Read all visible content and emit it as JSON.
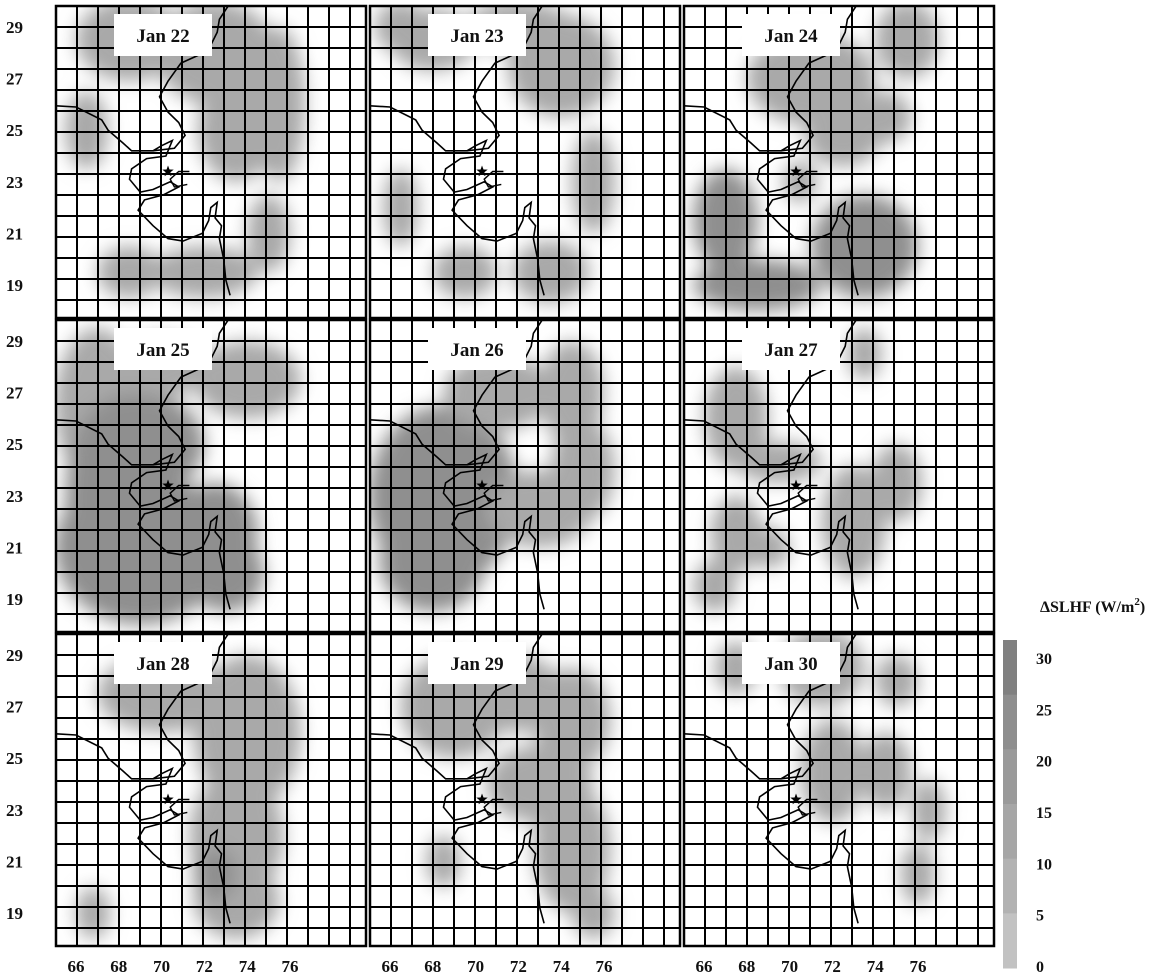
{
  "figure": {
    "panels": [
      {
        "date": "Jan 22"
      },
      {
        "date": "Jan 23"
      },
      {
        "date": "Jan 24"
      },
      {
        "date": "Jan 25"
      },
      {
        "date": "Jan 26"
      },
      {
        "date": "Jan 27"
      },
      {
        "date": "Jan 28"
      },
      {
        "date": "Jan 29"
      },
      {
        "date": "Jan 30"
      }
    ],
    "lat_ticks": [
      "29",
      "27",
      "25",
      "23",
      "21",
      "19"
    ],
    "lon_ticks": [
      "66",
      "68",
      "70",
      "72",
      "74",
      "76"
    ],
    "colorbar": {
      "title_main": "ΔSLHF (W/m",
      "title_sup": "2",
      "title_end": ")",
      "ticks": [
        "30",
        "25",
        "20",
        "15",
        "10",
        "5",
        "0"
      ],
      "colors": [
        "#808080",
        "#8e8e8e",
        "#9a9a9a",
        "#a6a6a6",
        "#b2b2b2",
        "#c2c2c2"
      ]
    },
    "colors": {
      "grid": "#000000",
      "coast": "#000000",
      "shade_low": "#a9a9a9",
      "shade_mid": "#8f8f8f",
      "shade_high": "#777777"
    }
  }
}
